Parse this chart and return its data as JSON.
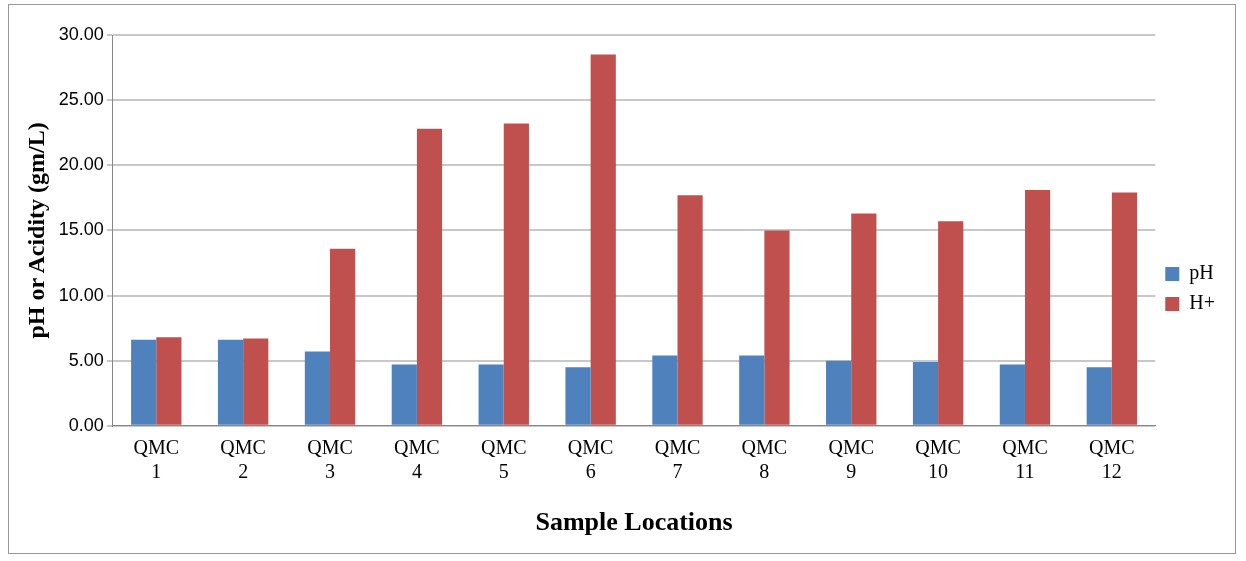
{
  "chart_data": {
    "type": "bar",
    "xlabel": "Sample Locations",
    "ylabel": "pH or Acidity (gm/L)",
    "categories": [
      "QMC 1",
      "QMC 2",
      "QMC 3",
      "QMC 4",
      "QMC 5",
      "QMC 6",
      "QMC 7",
      "QMC 8",
      "QMC 9",
      "QMC 10",
      "QMC 11",
      "QMC 12"
    ],
    "series": [
      {
        "name": "pH",
        "color": "#4f81bd",
        "values": [
          6.6,
          6.6,
          5.7,
          4.7,
          4.7,
          4.5,
          5.4,
          5.4,
          5.0,
          4.9,
          4.7,
          4.5
        ]
      },
      {
        "name": "H+",
        "color": "#c0504d",
        "values": [
          6.8,
          6.7,
          13.6,
          22.8,
          23.2,
          28.5,
          17.7,
          15.0,
          16.3,
          15.7,
          18.1,
          17.9
        ]
      }
    ],
    "ylim": [
      0,
      30
    ],
    "yticks": [
      {
        "value": 0,
        "label": "0.00"
      },
      {
        "value": 5,
        "label": "5.00"
      },
      {
        "value": 10,
        "label": "10.00"
      },
      {
        "value": 15,
        "label": "15.00"
      },
      {
        "value": 20,
        "label": "20.00"
      },
      {
        "value": 25,
        "label": "25.00"
      },
      {
        "value": 30,
        "label": "30.00"
      }
    ],
    "grid": "y",
    "legend": "right"
  }
}
